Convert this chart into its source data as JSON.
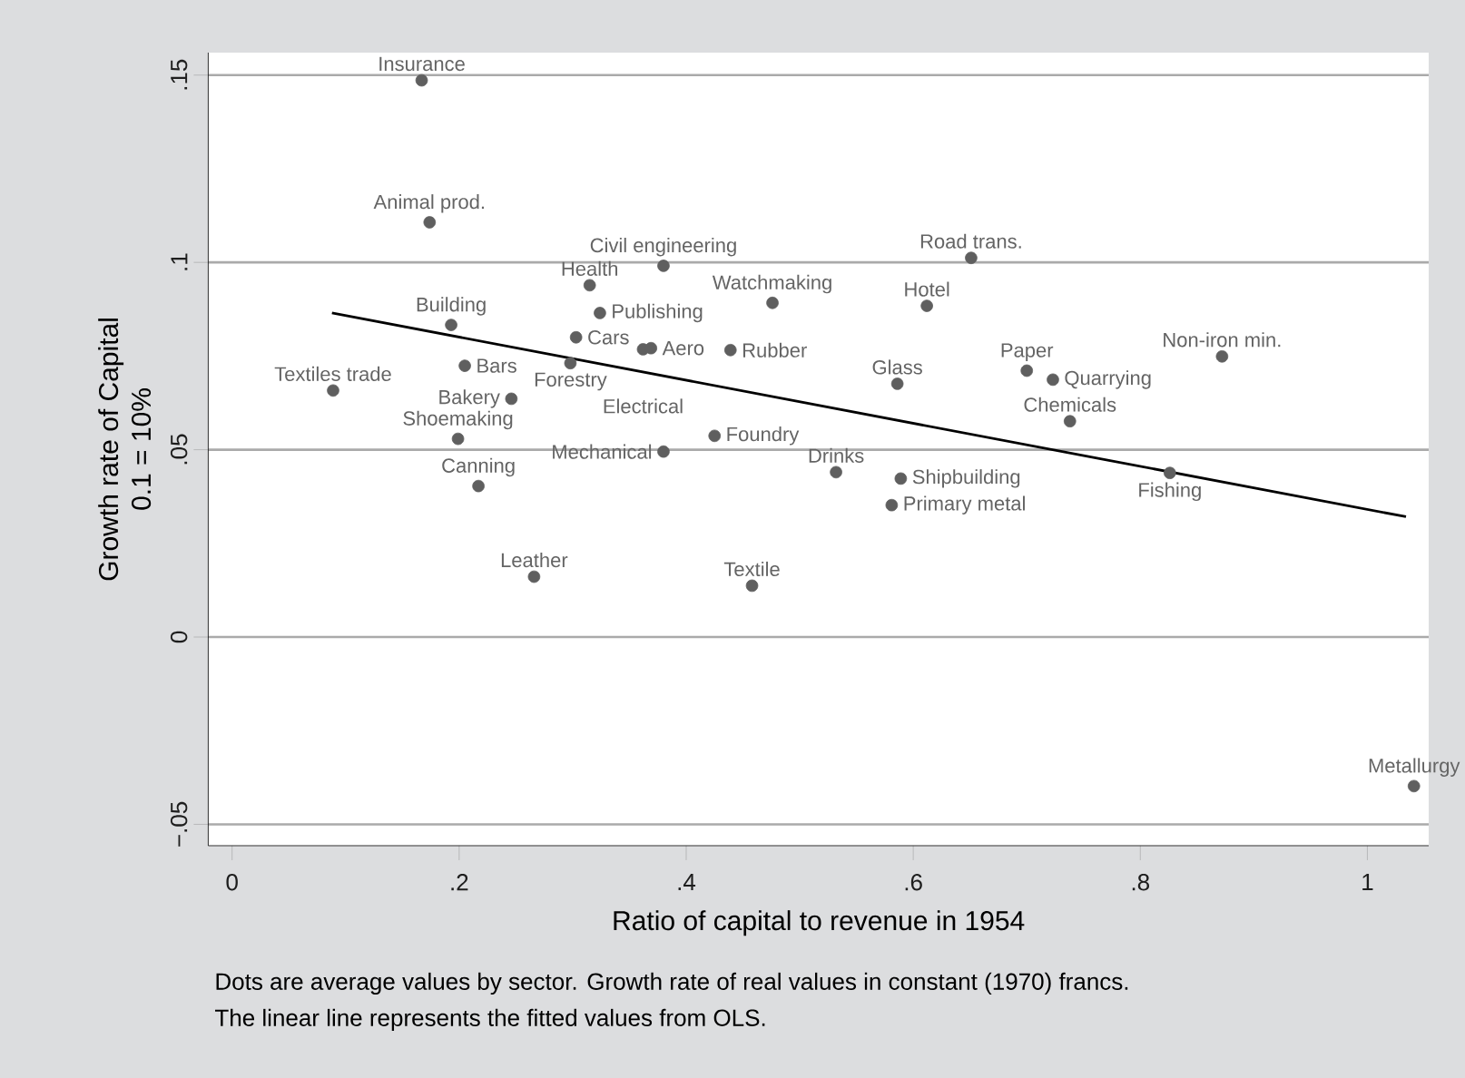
{
  "chart_data": {
    "type": "scatter",
    "xlabel": "Ratio of capital to revenue in 1954",
    "ylabel": "Growth rate of Capital\n0.1 = 10%",
    "xlim": [
      -0.021,
      1.054
    ],
    "ylim": [
      -0.0557,
      0.156
    ],
    "xticks": [
      0,
      {
        "value": 0.2,
        "label": ".2"
      },
      {
        "value": 0.4,
        "label": ".4"
      },
      {
        "value": 0.6,
        "label": ".6"
      },
      {
        "value": 0.8,
        "label": ".8"
      },
      1
    ],
    "yticks": [
      {
        "value": -0.05,
        "label": "−.05"
      },
      0,
      {
        "value": 0.05,
        "label": ".05"
      },
      {
        "value": 0.1,
        "label": ".1"
      },
      {
        "value": 0.15,
        "label": ".15"
      }
    ],
    "grid": "y",
    "marker": "circle",
    "series": [
      {
        "color": "#5f5f5f",
        "x": [
          0.167,
          0.174,
          0.38,
          0.315,
          0.324,
          0.476,
          0.193,
          0.303,
          0.362,
          0.369,
          0.439,
          0.298,
          0.205,
          0.089,
          0.246,
          0.199,
          0.425,
          0.38,
          0.217,
          0.266,
          0.458,
          0.532,
          0.589,
          0.581,
          0.826,
          1.041,
          0.651,
          0.612,
          0.586,
          0.7,
          0.723,
          0.872,
          0.738
        ],
        "values": [
          0.1486,
          0.1107,
          0.0991,
          0.0939,
          0.0865,
          0.0892,
          0.0833,
          0.08,
          0.0768,
          0.0771,
          0.0766,
          0.0731,
          0.0724,
          0.0658,
          0.0636,
          0.0529,
          0.0537,
          0.0495,
          0.0403,
          0.0161,
          0.0137,
          0.044,
          0.0423,
          0.0352,
          0.0438,
          -0.0398,
          0.1012,
          0.0884,
          0.0676,
          0.0711,
          0.0687,
          0.0749,
          0.0576
        ]
      },
      {
        "type": "line",
        "color": "#000000",
        "marker": "none",
        "x": [
          0.088,
          1.034
        ],
        "values": [
          0.0865,
          0.0321
        ]
      }
    ],
    "annotations": [
      {
        "text": "Insurance",
        "x": 0.167,
        "y": 0.1486
      },
      {
        "text": "Animal prod.",
        "x": 0.174,
        "y": 0.1107
      },
      {
        "text": "Civil engineering",
        "x": 0.38,
        "y": 0.0991
      },
      {
        "text": "Health",
        "x": 0.315,
        "y": 0.0939
      },
      {
        "text": "Publishing",
        "x": 0.324,
        "y": 0.0865
      },
      {
        "text": "Watchmaking",
        "x": 0.476,
        "y": 0.0892
      },
      {
        "text": "Building",
        "x": 0.193,
        "y": 0.0833
      },
      {
        "text": "Cars",
        "x": 0.303,
        "y": 0.08
      },
      {
        "text": "Electrical",
        "x": 0.362,
        "y": 0.0768
      },
      {
        "text": "Aero",
        "x": 0.369,
        "y": 0.0771
      },
      {
        "text": "Rubber",
        "x": 0.439,
        "y": 0.0766
      },
      {
        "text": "Forestry",
        "x": 0.298,
        "y": 0.0731
      },
      {
        "text": "Bars",
        "x": 0.205,
        "y": 0.0724
      },
      {
        "text": "Textiles trade",
        "x": 0.089,
        "y": 0.0658
      },
      {
        "text": "Bakery",
        "x": 0.246,
        "y": 0.0636
      },
      {
        "text": "Shoemaking",
        "x": 0.199,
        "y": 0.0529
      },
      {
        "text": "Foundry",
        "x": 0.425,
        "y": 0.0537
      },
      {
        "text": "Mechanical",
        "x": 0.38,
        "y": 0.0495
      },
      {
        "text": "Canning",
        "x": 0.217,
        "y": 0.0403
      },
      {
        "text": "Leather",
        "x": 0.266,
        "y": 0.0161
      },
      {
        "text": "Textile",
        "x": 0.458,
        "y": 0.0137
      },
      {
        "text": "Drinks",
        "x": 0.532,
        "y": 0.044
      },
      {
        "text": "Shipbuilding",
        "x": 0.589,
        "y": 0.0423
      },
      {
        "text": "Primary metal",
        "x": 0.581,
        "y": 0.0352
      },
      {
        "text": "Fishing",
        "x": 0.826,
        "y": 0.0438
      },
      {
        "text": "Metallurgy",
        "x": 1.041,
        "y": -0.0398
      },
      {
        "text": "Road trans.",
        "x": 0.651,
        "y": 0.1012
      },
      {
        "text": "Hotel",
        "x": 0.612,
        "y": 0.0884
      },
      {
        "text": "Glass",
        "x": 0.586,
        "y": 0.0676
      },
      {
        "text": "Paper",
        "x": 0.7,
        "y": 0.0711
      },
      {
        "text": "Quarrying",
        "x": 0.723,
        "y": 0.0687
      },
      {
        "text": "Non-iron min.",
        "x": 0.872,
        "y": 0.0749
      },
      {
        "text": "Chemicals",
        "x": 0.738,
        "y": 0.0576
      },
      "Dots are average values by sector. Growth rate of real values in constant (1970) francs.",
      "The linear line represents the fitted values from OLS."
    ]
  }
}
